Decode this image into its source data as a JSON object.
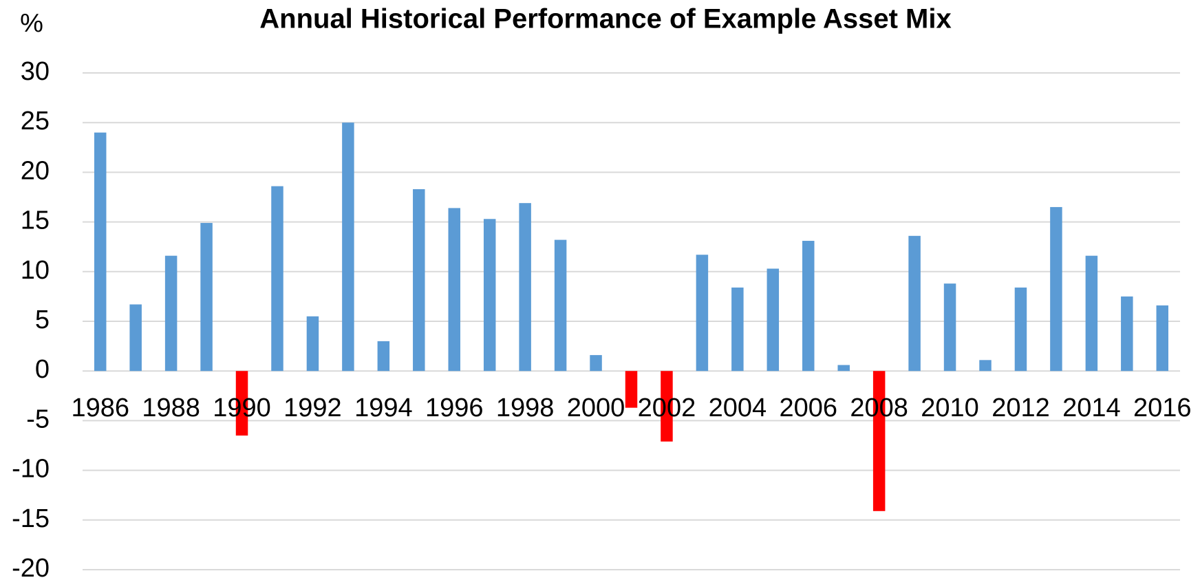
{
  "chart_data": {
    "type": "bar",
    "title": "Annual Historical Performance of Example Asset Mix",
    "y_label": "%",
    "categories": [
      "1986",
      null,
      "1988",
      null,
      "1990",
      null,
      "1992",
      null,
      "1994",
      null,
      "1996",
      null,
      "1998",
      null,
      "2000",
      null,
      "2002",
      null,
      "2004",
      null,
      "2006",
      null,
      "2008",
      null,
      "2010",
      null,
      "2012",
      null,
      "2014",
      null,
      "2016"
    ],
    "values": [
      24,
      6.7,
      11.6,
      14.9,
      -6.5,
      18.6,
      5.5,
      25,
      3,
      18.3,
      16.4,
      15.3,
      16.9,
      13.2,
      1.6,
      -3.7,
      -7.1,
      11.7,
      8.4,
      10.3,
      13.1,
      0.6,
      -14.1,
      13.6,
      8.8,
      1.1,
      8.4,
      16.5,
      11.6,
      7.5,
      6.6
    ],
    "color": "#5b9bd5",
    "negative_color": "#ff0000",
    "ylim": [
      -20,
      30
    ],
    "yticks": [
      -20,
      -15,
      -10,
      -5,
      0,
      5,
      10,
      15,
      20,
      25,
      30
    ],
    "grid": true
  }
}
